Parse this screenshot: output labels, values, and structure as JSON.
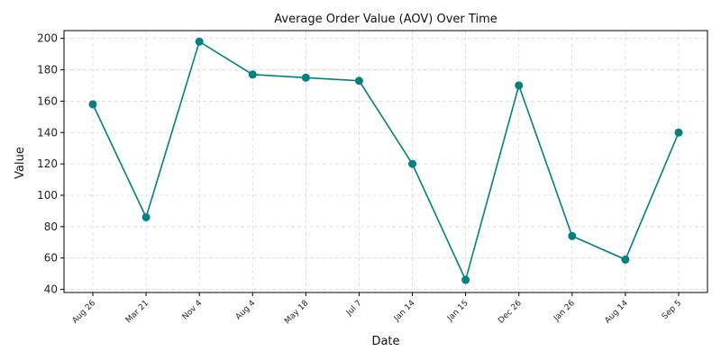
{
  "chart_data": {
    "type": "line",
    "title": "Average Order Value (AOV) Over Time",
    "xlabel": "Date",
    "ylabel": "Value",
    "categories": [
      "Aug 26",
      "Mar 21",
      "Nov 4",
      "Aug 4",
      "May 18",
      "Jul 7",
      "Jan 14",
      "Jan 15",
      "Dec 26",
      "Jan 26",
      "Aug 14",
      "Sep 5"
    ],
    "series": [
      {
        "values": [
          158,
          86,
          198,
          177,
          175,
          173,
          120,
          46,
          170,
          74,
          59,
          140
        ]
      }
    ],
    "ylim": [
      38,
      205
    ],
    "yticks": [
      40,
      60,
      80,
      100,
      120,
      140,
      160,
      180,
      200
    ],
    "grid": true,
    "line_color": "#008080",
    "marker_color": "#008080",
    "grid_color": "#d9d9d9"
  }
}
